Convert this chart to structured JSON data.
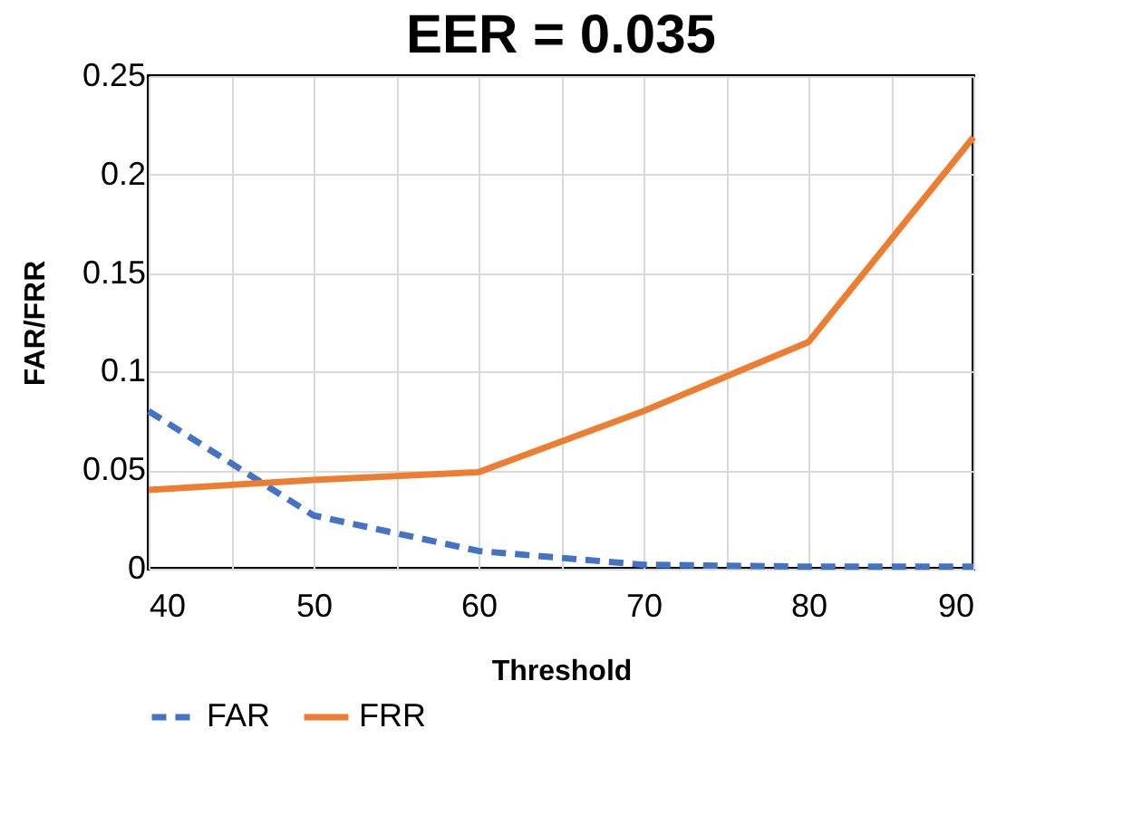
{
  "chart_data": {
    "type": "line",
    "title": "EER = 0.035",
    "xlabel": "Threshold",
    "ylabel": "FAR/FRR",
    "x": [
      40,
      50,
      60,
      70,
      80,
      90
    ],
    "series": [
      {
        "name": "FAR",
        "color": "#4472c4",
        "line_style": "dashed",
        "values": [
          0.08,
          0.027,
          0.009,
          0.002,
          0.001,
          0.001
        ]
      },
      {
        "name": "FRR",
        "color": "#ed7d31",
        "line_style": "solid",
        "values": [
          0.04,
          0.045,
          0.049,
          0.08,
          0.115,
          0.219
        ]
      }
    ],
    "xlim": [
      40,
      90
    ],
    "xticks": [
      40,
      {
        "value": 45,
        "label": null
      },
      50,
      {
        "value": 55,
        "label": null
      },
      60,
      {
        "value": 65,
        "label": null
      },
      70,
      {
        "value": 75,
        "label": null
      },
      80,
      {
        "value": 85,
        "label": null
      },
      90
    ],
    "ylim": [
      0,
      0.25
    ],
    "yticks": [
      0,
      0.05,
      0.1,
      0.15,
      0.2,
      0.25
    ],
    "grid": true,
    "legend": "bottom",
    "marker": "none"
  }
}
